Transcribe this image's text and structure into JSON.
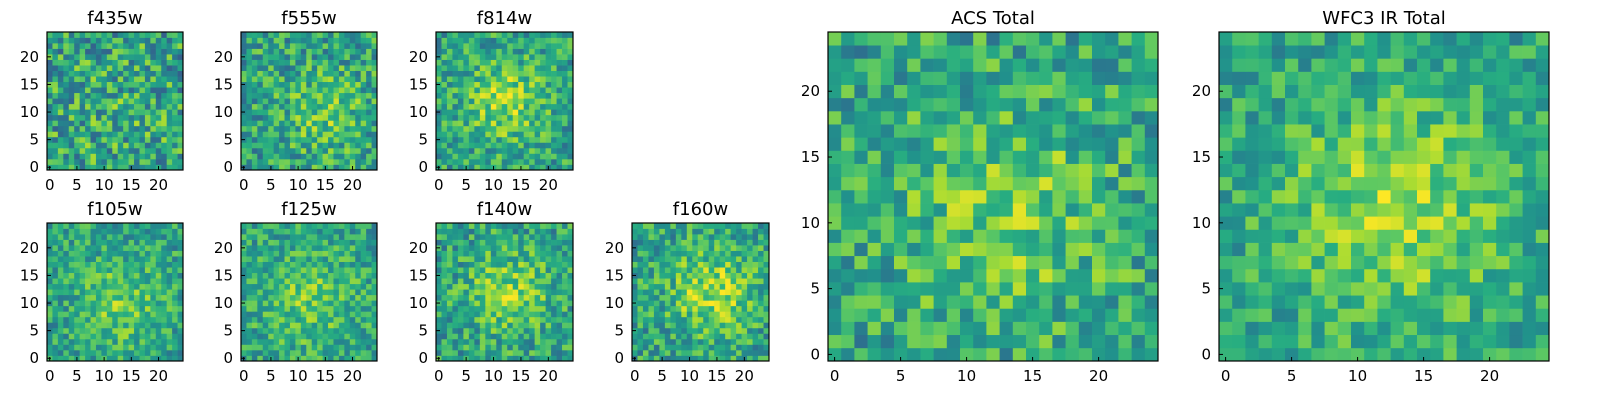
{
  "chart_data": [
    {
      "type": "heatmap",
      "title": "f435w",
      "grid": "25x25",
      "xlim": [
        0,
        24
      ],
      "ylim": [
        0,
        24
      ],
      "xticks": [
        0,
        5,
        10,
        15,
        20
      ],
      "yticks": [
        0,
        5,
        10,
        15,
        20
      ],
      "colormap": "viridis",
      "center": [
        12,
        11
      ],
      "sigma": 7,
      "amp": 0.05,
      "noise": 0.28,
      "seed": 11
    },
    {
      "type": "heatmap",
      "title": "f555w",
      "grid": "25x25",
      "xlim": [
        0,
        24
      ],
      "ylim": [
        0,
        24
      ],
      "xticks": [
        0,
        5,
        10,
        15,
        20
      ],
      "yticks": [
        0,
        5,
        10,
        15,
        20
      ],
      "colormap": "viridis",
      "center": [
        15,
        10
      ],
      "sigma": 5,
      "amp": 0.18,
      "noise": 0.24,
      "seed": 23
    },
    {
      "type": "heatmap",
      "title": "f814w",
      "grid": "25x25",
      "xlim": [
        0,
        24
      ],
      "ylim": [
        0,
        24
      ],
      "xticks": [
        0,
        5,
        10,
        15,
        20
      ],
      "yticks": [
        0,
        5,
        10,
        15,
        20
      ],
      "colormap": "viridis",
      "center": [
        12,
        12
      ],
      "sigma": 5,
      "amp": 0.26,
      "noise": 0.22,
      "seed": 37
    },
    {
      "type": "heatmap",
      "title": "f105w",
      "grid": "25x25",
      "xlim": [
        0,
        24
      ],
      "ylim": [
        0,
        24
      ],
      "xticks": [
        0,
        5,
        10,
        15,
        20
      ],
      "yticks": [
        0,
        5,
        10,
        15,
        20
      ],
      "colormap": "viridis",
      "center": [
        13,
        10
      ],
      "sigma": 5,
      "amp": 0.2,
      "noise": 0.2,
      "seed": 41
    },
    {
      "type": "heatmap",
      "title": "f125w",
      "grid": "25x25",
      "xlim": [
        0,
        24
      ],
      "ylim": [
        0,
        24
      ],
      "xticks": [
        0,
        5,
        10,
        15,
        20
      ],
      "yticks": [
        0,
        5,
        10,
        15,
        20
      ],
      "colormap": "viridis",
      "center": [
        12,
        11
      ],
      "sigma": 6,
      "amp": 0.18,
      "noise": 0.2,
      "seed": 53
    },
    {
      "type": "heatmap",
      "title": "f140w",
      "grid": "25x25",
      "xlim": [
        0,
        24
      ],
      "ylim": [
        0,
        24
      ],
      "xticks": [
        0,
        5,
        10,
        15,
        20
      ],
      "yticks": [
        0,
        5,
        10,
        15,
        20
      ],
      "colormap": "viridis",
      "center": [
        13,
        12
      ],
      "sigma": 5,
      "amp": 0.24,
      "noise": 0.22,
      "seed": 67
    },
    {
      "type": "heatmap",
      "title": "f160w",
      "grid": "25x25",
      "xlim": [
        0,
        24
      ],
      "ylim": [
        0,
        24
      ],
      "xticks": [
        0,
        5,
        10,
        15,
        20
      ],
      "yticks": [
        0,
        5,
        10,
        15,
        20
      ],
      "colormap": "viridis",
      "center": [
        14,
        12
      ],
      "sigma": 5,
      "amp": 0.3,
      "noise": 0.22,
      "seed": 79
    },
    {
      "type": "heatmap",
      "title": "ACS Total",
      "grid": "25x25",
      "xlim": [
        0,
        24
      ],
      "ylim": [
        0,
        24
      ],
      "xticks": [
        0,
        5,
        10,
        15,
        20
      ],
      "yticks": [
        0,
        5,
        10,
        15,
        20
      ],
      "colormap": "viridis",
      "center": [
        13,
        11
      ],
      "sigma": 6,
      "amp": 0.2,
      "noise": 0.22,
      "seed": 97
    },
    {
      "type": "heatmap",
      "title": "WFC3 IR Total",
      "grid": "25x25",
      "xlim": [
        0,
        24
      ],
      "ylim": [
        0,
        24
      ],
      "xticks": [
        0,
        5,
        10,
        15,
        20
      ],
      "yticks": [
        0,
        5,
        10,
        15,
        20
      ],
      "colormap": "viridis",
      "center": [
        13,
        11
      ],
      "sigma": 6,
      "amp": 0.28,
      "noise": 0.18,
      "seed": 113
    }
  ]
}
